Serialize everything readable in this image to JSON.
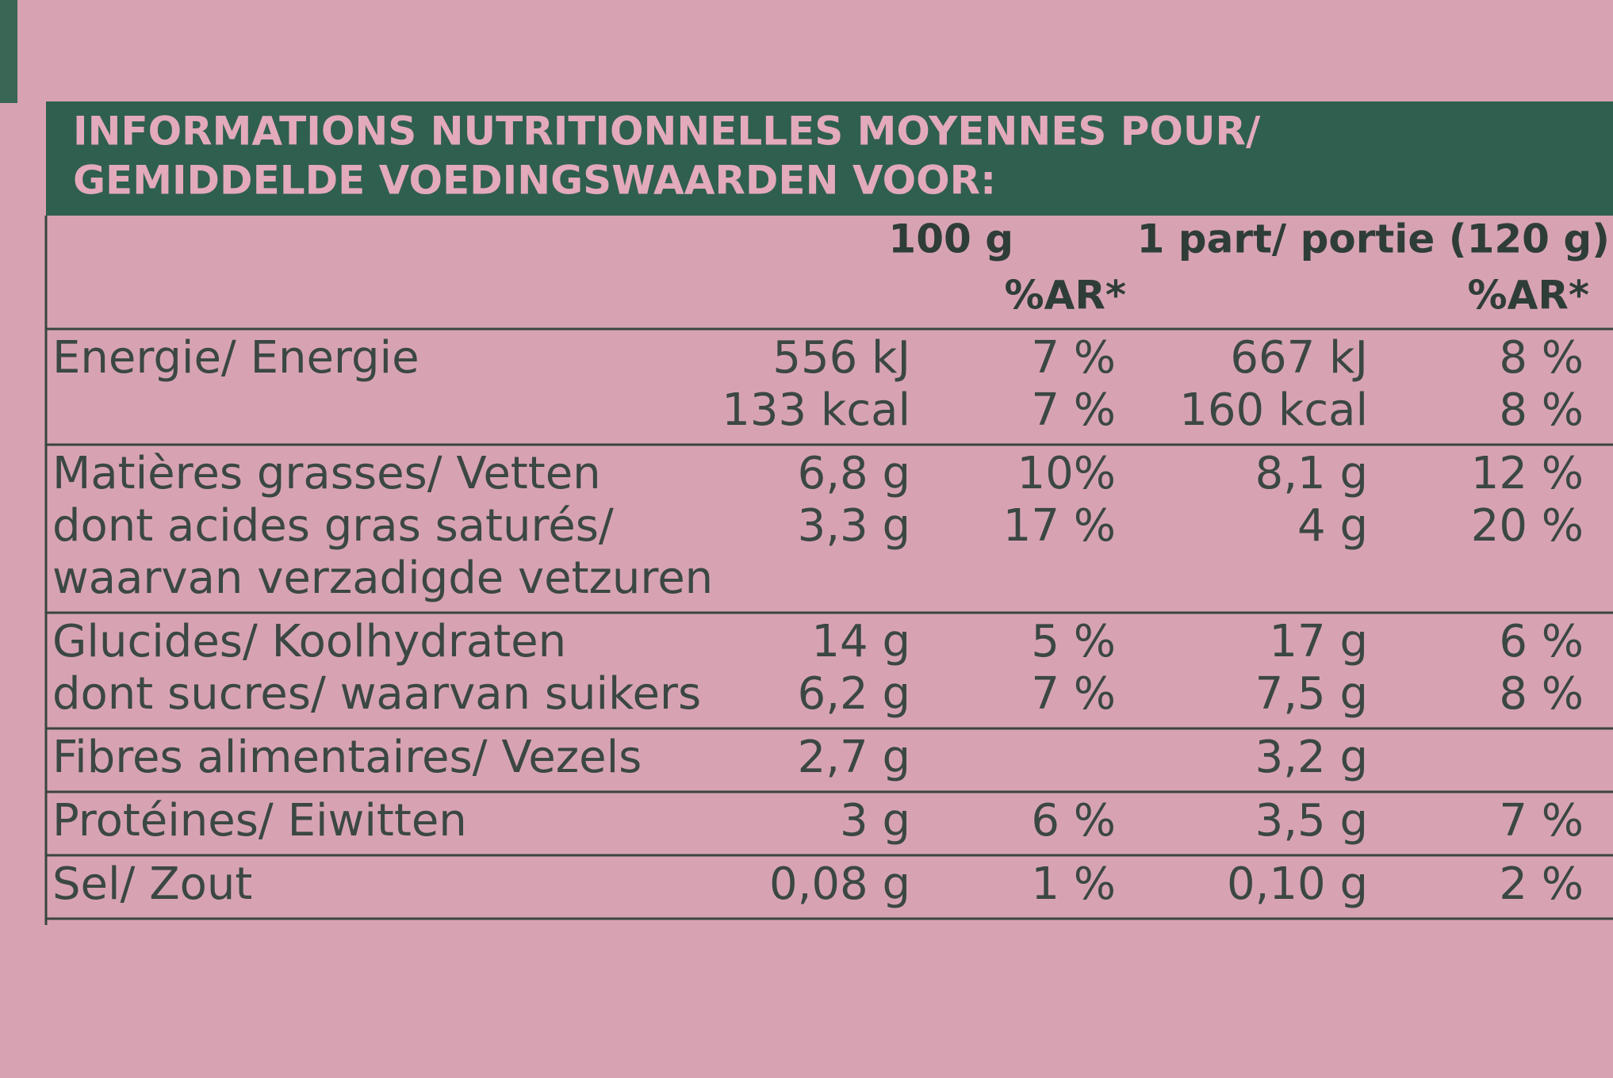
{
  "header": {
    "title": [
      "INFORMATIONS NUTRITIONNELLES MOYENNES POUR/",
      "GEMIDDELDE VOEDINGSWAARDEN VOOR:"
    ]
  },
  "table": {
    "columns": {
      "per_100g": "100 g",
      "per_100g_ar": "%AR*",
      "per_portion": "1 part/ portie (120 g)",
      "per_portion_ar": "%AR*"
    },
    "groups": [
      [
        {
          "label": "Energie/ Energie",
          "per_100g": "556 kJ",
          "per_100g_ar": "7 %",
          "per_portion": "667 kJ",
          "per_portion_ar": "8 %"
        },
        {
          "per_100g": "133 kcal",
          "per_100g_ar": "7 %",
          "per_portion": "160 kcal",
          "per_portion_ar": "8 %"
        }
      ],
      [
        {
          "label": "Matières grasses/ Vetten",
          "per_100g": "6,8 g",
          "per_100g_ar": "10%",
          "per_portion": "8,1 g",
          "per_portion_ar": "12 %"
        },
        {
          "label": "dont acides gras saturés/",
          "per_100g": "3,3 g",
          "per_100g_ar": "17 %",
          "per_portion": "4 g",
          "per_portion_ar": "20 %"
        },
        {
          "label": "waarvan verzadigde vetzuren"
        }
      ],
      [
        {
          "label": "Glucides/ Koolhydraten",
          "per_100g": "14 g",
          "per_100g_ar": "5 %",
          "per_portion": "17 g",
          "per_portion_ar": "6 %"
        },
        {
          "label": "dont sucres/ waarvan suikers",
          "per_100g": "6,2 g",
          "per_100g_ar": "7 %",
          "per_portion": "7,5 g",
          "per_portion_ar": "8 %"
        }
      ],
      [
        {
          "label": "Fibres alimentaires/ Vezels",
          "per_100g": "2,7 g",
          "per_portion": "3,2 g"
        }
      ],
      [
        {
          "label": "Protéines/ Eiwitten",
          "per_100g": "3 g",
          "per_100g_ar": "6 %",
          "per_portion": "3,5 g",
          "per_portion_ar": "7 %"
        }
      ],
      [
        {
          "label": "Sel/ Zout",
          "per_100g": "0,08 g",
          "per_100g_ar": "1 %",
          "per_portion": "0,10 g",
          "per_portion_ar": "2 %"
        }
      ]
    ]
  }
}
